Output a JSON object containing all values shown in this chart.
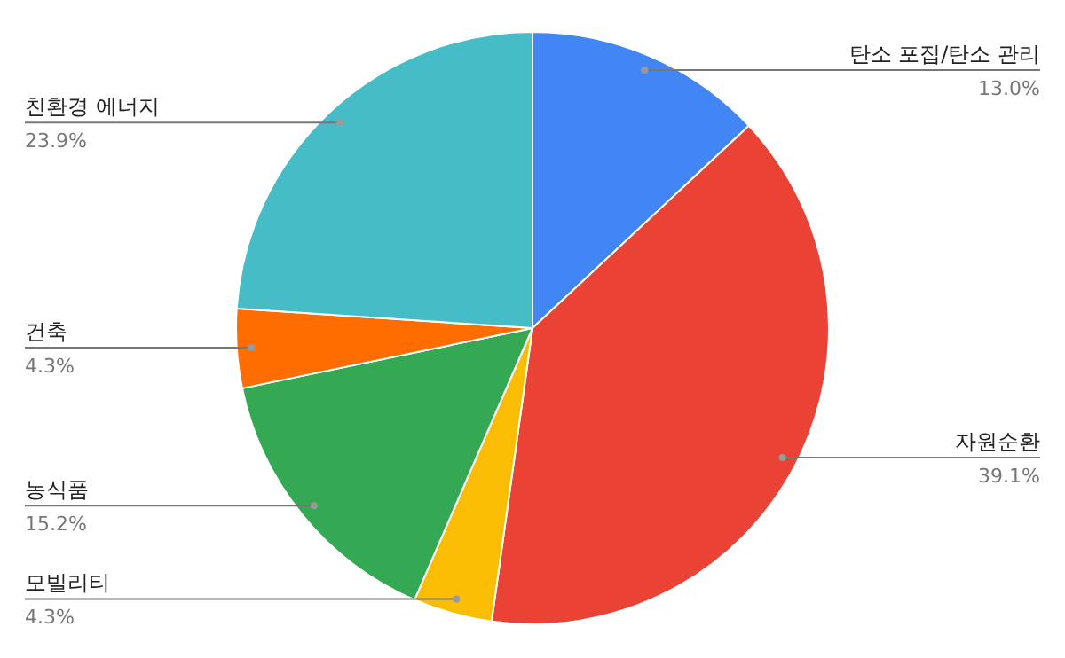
{
  "chart_data": {
    "type": "pie",
    "categories": [
      "탄소 포집/탄소 관리",
      "자원순환",
      "모빌리티",
      "농식품",
      "건축",
      "친환경 에너지"
    ],
    "values": [
      13.0,
      39.1,
      4.3,
      15.2,
      4.3,
      23.9
    ],
    "colors": [
      "#4285f4",
      "#ea4335",
      "#fbbc04",
      "#34a853",
      "#ff6d01",
      "#46bdc6"
    ],
    "value_labels": [
      "13.0%",
      "39.1%",
      "4.3%",
      "15.2%",
      "4.3%",
      "23.9%"
    ],
    "legend": false
  }
}
